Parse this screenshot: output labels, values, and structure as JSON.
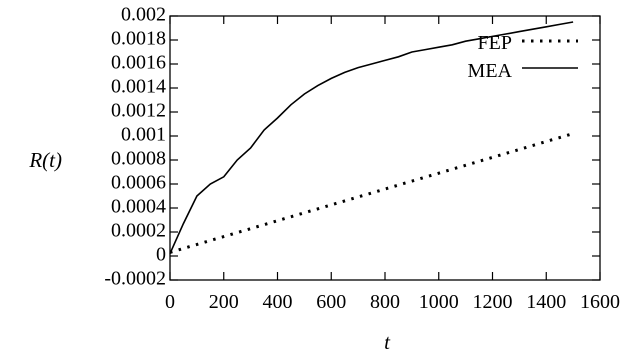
{
  "chart_data": {
    "type": "line",
    "title": "",
    "xlabel": "t",
    "ylabel": "R(t)",
    "xlim": [
      0,
      1600
    ],
    "ylim": [
      -0.0002,
      0.002
    ],
    "x_ticks": [
      "0",
      "200",
      "400",
      "600",
      "800",
      "1000",
      "1200",
      "1400",
      "1600"
    ],
    "y_ticks": [
      "-0.0002",
      "0",
      "0.0002",
      "0.0004",
      "0.0006",
      "0.0008",
      "0.001",
      "0.0012",
      "0.0014",
      "0.0016",
      "0.0018",
      "0.002"
    ],
    "grid": false,
    "legend_position": "top-right",
    "series": [
      {
        "name": "FEP",
        "style": "dotted",
        "color": "#000000",
        "x": [
          0,
          1500
        ],
        "y": [
          3e-05,
          0.00102
        ]
      },
      {
        "name": "MEA",
        "style": "solid",
        "color": "#000000",
        "x": [
          0,
          50,
          100,
          150,
          200,
          250,
          300,
          350,
          400,
          450,
          500,
          550,
          600,
          650,
          700,
          750,
          800,
          850,
          900,
          950,
          1000,
          1050,
          1100,
          1150,
          1200,
          1250,
          1300,
          1350,
          1400,
          1450,
          1500
        ],
        "y": [
          2e-05,
          0.00027,
          0.0005,
          0.0006,
          0.00066,
          0.0008,
          0.0009,
          0.00105,
          0.00115,
          0.00126,
          0.00135,
          0.00142,
          0.00148,
          0.00153,
          0.00157,
          0.0016,
          0.00163,
          0.00166,
          0.0017,
          0.00172,
          0.00174,
          0.00176,
          0.00179,
          0.00181,
          0.00183,
          0.00185,
          0.00187,
          0.00189,
          0.00191,
          0.00193,
          0.00195
        ]
      }
    ]
  }
}
